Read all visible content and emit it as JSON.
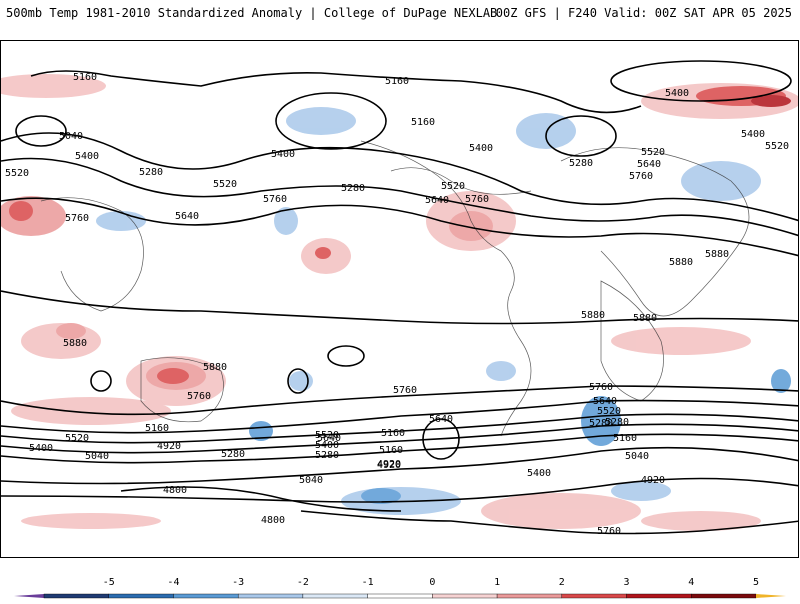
{
  "header": {
    "title": "500mb Temp 1981-2010 Standardized Anomaly | College of DuPage NEXLAB",
    "run_info": "00Z GFS | F240 Valid: 00Z SAT APR 05 2025"
  },
  "contour_labels": [
    "5160",
    "5160",
    "5040",
    "5400",
    "5520",
    "5280",
    "5760",
    "5640",
    "5520",
    "5400",
    "5760",
    "5280",
    "5160",
    "5400",
    "5520",
    "5640",
    "5760",
    "5280",
    "5400",
    "5520",
    "5640",
    "5760",
    "5400",
    "5520",
    "5880",
    "5880",
    "5880",
    "5880",
    "5880",
    "5880",
    "5760",
    "5760",
    "5640",
    "5520",
    "5400",
    "5280",
    "5160",
    "5040",
    "4920",
    "4800",
    "4800",
    "4920",
    "5040",
    "5160",
    "5280",
    "5400",
    "5520",
    "5640",
    "5760",
    "5280",
    "5160",
    "4920",
    "5040",
    "5160",
    "5280",
    "5400",
    "5520",
    "5640",
    "5760",
    "4920",
    "5040",
    "5280",
    "5400",
    "5520",
    "5640",
    "5760"
  ],
  "legend": {
    "ticks": [
      "-5",
      "-4",
      "-3",
      "-2",
      "-1",
      "0",
      "1",
      "2",
      "3",
      "4",
      "5"
    ],
    "colors": [
      "#6a3d9a",
      "#1f3b73",
      "#2b6cb0",
      "#5a9bd5",
      "#a9c8ea",
      "#dbe8f6",
      "#ffffff",
      "#f6d2d2",
      "#eb9a9a",
      "#d9484a",
      "#b0141b",
      "#7a0a0d",
      "#f0b429"
    ]
  }
}
